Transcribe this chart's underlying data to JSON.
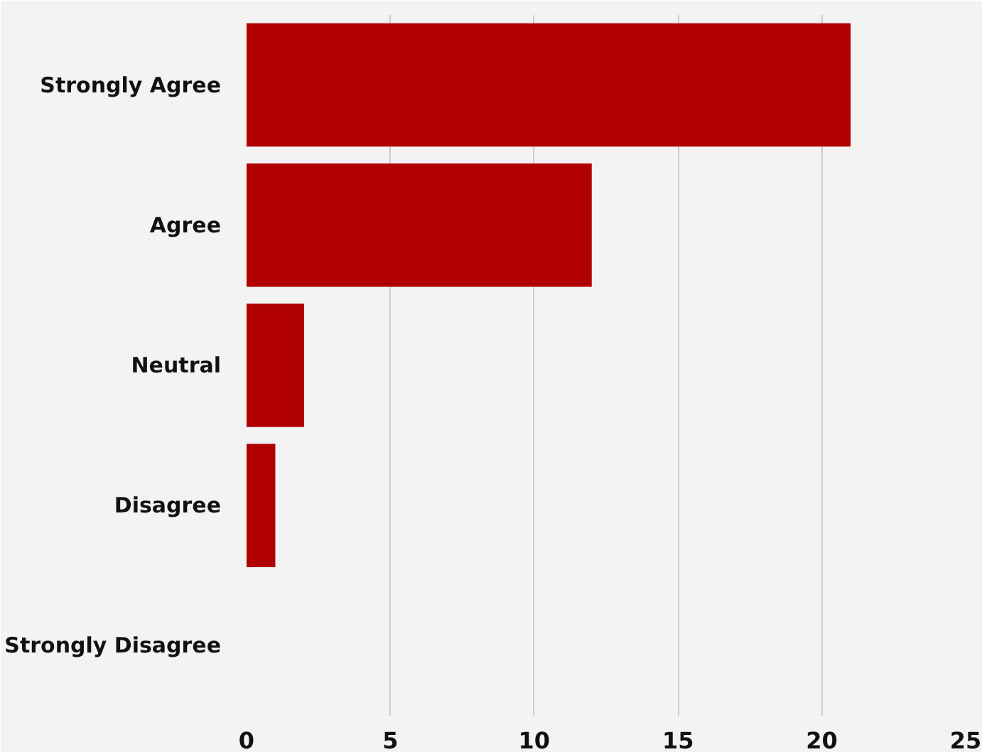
{
  "chart_data": {
    "type": "bar",
    "orientation": "horizontal",
    "categories": [
      "Strongly Agree",
      "Agree",
      "Neutral",
      "Disagree",
      "Strongly Disagree"
    ],
    "values": [
      21,
      12,
      2,
      1,
      0
    ],
    "color": "#b00000",
    "xlim": [
      0,
      25
    ],
    "xticks": [
      0,
      5,
      10,
      15,
      20,
      25
    ],
    "grid": "x"
  }
}
